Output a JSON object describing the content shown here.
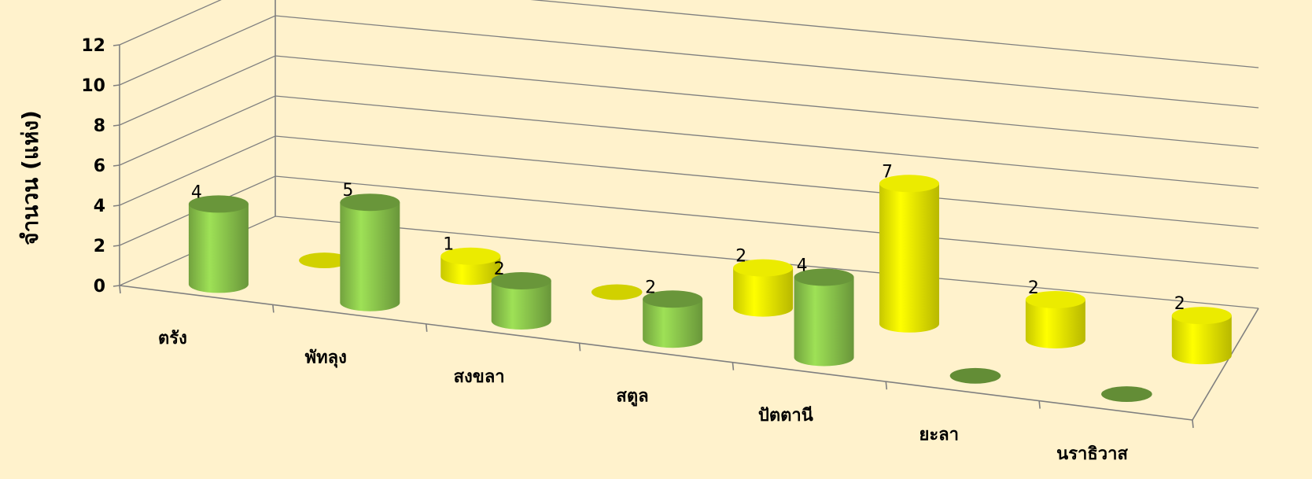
{
  "chart_data": {
    "type": "bar",
    "style": "3d-cylinder",
    "ylabel": "จำนวน (แห่ง)",
    "ylim": [
      0,
      12
    ],
    "ytick_step": 2,
    "yticks": [
      "0",
      "2",
      "4",
      "6",
      "8",
      "10",
      "12"
    ],
    "grid": true,
    "categories": [
      "ตรัง",
      "พัทลุง",
      "สงขลา",
      "สตูล",
      "ปัตตานี",
      "ยะลา",
      "นราธิวาส"
    ],
    "series": [
      {
        "color": "#92d050",
        "values": [
          4,
          5,
          2,
          2,
          4,
          0,
          0
        ]
      },
      {
        "color": "#ffff00",
        "values": [
          0,
          1,
          0,
          2,
          7,
          2,
          2
        ]
      }
    ]
  }
}
